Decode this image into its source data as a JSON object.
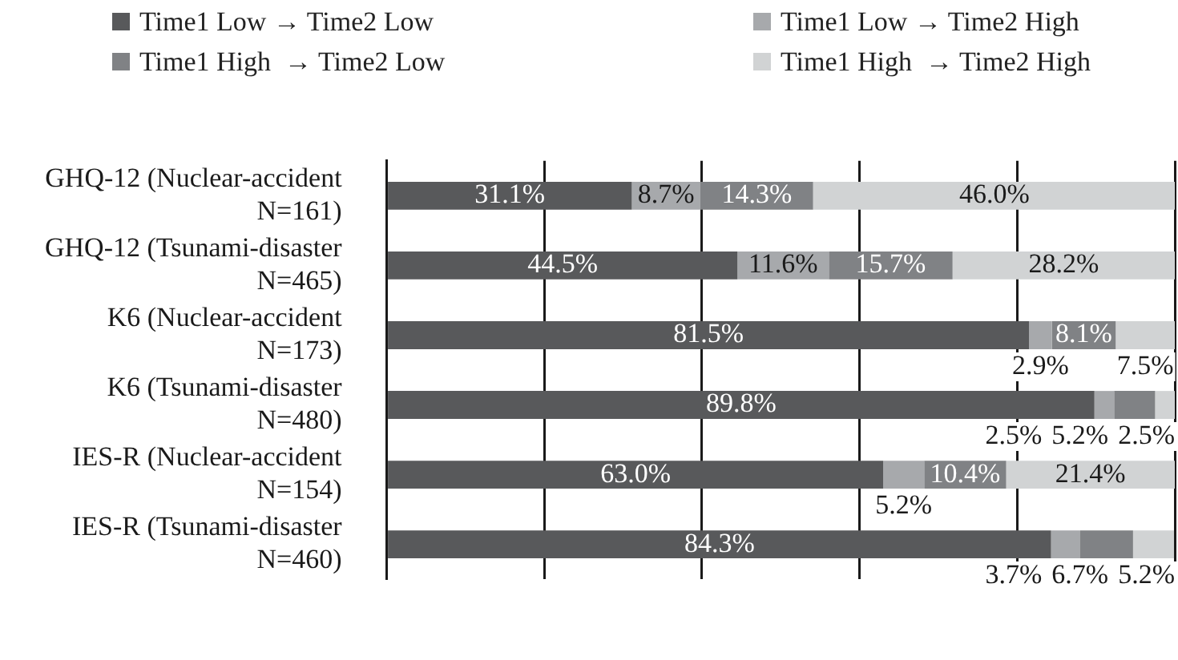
{
  "chart_data": {
    "type": "bar",
    "orientation": "horizontal",
    "stacked": true,
    "categories": [
      "GHQ-12 (Nuclear-accident N=161)",
      "GHQ-12 (Tsunami-disaster N=465)",
      "K6 (Nuclear-accident N=173)",
      "K6 (Tsunami-disaster N=480)",
      "IES-R (Nuclear-accident N=154)",
      "IES-R (Tsunami-disaster N=460)"
    ],
    "series": [
      {
        "name": "Time1 Low → Time2 Low",
        "color": "#58595b",
        "values": [
          31.1,
          44.5,
          81.5,
          89.8,
          63.0,
          84.3
        ],
        "value_labels": [
          "31.1%",
          "44.5%",
          "81.5%",
          "89.8%",
          "63.0%",
          "84.3%"
        ]
      },
      {
        "name": "Time1 Low → Time2 High",
        "color": "#a7a9ac",
        "values": [
          8.7,
          11.6,
          2.9,
          2.5,
          5.2,
          3.7
        ],
        "value_labels": [
          "8.7%",
          "11.6%",
          "2.9%",
          "2.5%",
          "5.2%",
          "3.7%"
        ]
      },
      {
        "name": "Time1 High  → Time2 Low",
        "color": "#808285",
        "values": [
          14.3,
          15.7,
          8.1,
          5.2,
          10.4,
          6.7
        ],
        "value_labels": [
          "14.3%",
          "15.7%",
          "8.1%",
          "5.2%",
          "10.4%",
          "6.7%"
        ]
      },
      {
        "name": "Time1 High  → Time2 High",
        "color": "#d1d3d4",
        "values": [
          46.0,
          28.2,
          7.5,
          2.5,
          21.4,
          5.2
        ],
        "value_labels": [
          "46.0%",
          "28.2%",
          "7.5%",
          "2.5%",
          "21.4%",
          "5.2%"
        ]
      }
    ],
    "xlim": [
      0,
      100
    ],
    "xticks": [
      {
        "value": 0,
        "label": null
      },
      {
        "value": 20,
        "label": null
      },
      {
        "value": 40,
        "label": null
      },
      {
        "value": 60,
        "label": null
      },
      {
        "value": 80,
        "label": null
      },
      {
        "value": 100,
        "label": null
      }
    ],
    "grid": "x",
    "legend": "top",
    "tick_labels": "y"
  }
}
